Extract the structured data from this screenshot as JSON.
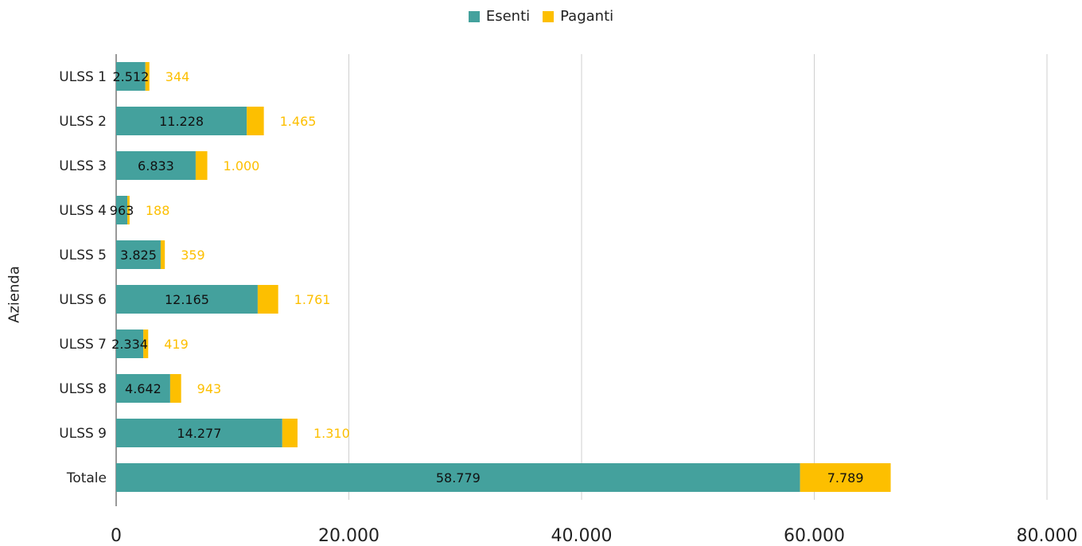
{
  "chart_data": {
    "type": "bar",
    "orientation": "horizontal",
    "stacked": true,
    "ylabel": "Azienda",
    "xlabel": "",
    "categories": [
      "ULSS 1",
      "ULSS 2",
      "ULSS 3",
      "ULSS 4",
      "ULSS 5",
      "ULSS 6",
      "ULSS 7",
      "ULSS 8",
      "ULSS 9",
      "Totale"
    ],
    "series": [
      {
        "name": "Esenti",
        "color": "#44a19d",
        "values": [
          2512,
          11228,
          6833,
          963,
          3825,
          12165,
          2334,
          4642,
          14277,
          58779
        ],
        "labels": [
          "2.512",
          "11.228",
          "6.833",
          "963",
          "3.825",
          "12.165",
          "2.334",
          "4.642",
          "14.277",
          "58.779"
        ]
      },
      {
        "name": "Paganti",
        "color": "#fdbf00",
        "values": [
          344,
          1465,
          1000,
          188,
          359,
          1761,
          419,
          943,
          1310,
          7789
        ],
        "labels": [
          "344",
          "1.465",
          "1.000",
          "188",
          "359",
          "1.761",
          "419",
          "943",
          "1.310",
          "7.789"
        ]
      }
    ],
    "xlim": [
      0,
      80000
    ],
    "xticks": [
      0,
      20000,
      40000,
      60000,
      80000
    ],
    "xtick_labels": [
      "0",
      "20.000",
      "40.000",
      "60.000",
      "80.000"
    ],
    "grid": true,
    "legend_position": "top-center"
  }
}
